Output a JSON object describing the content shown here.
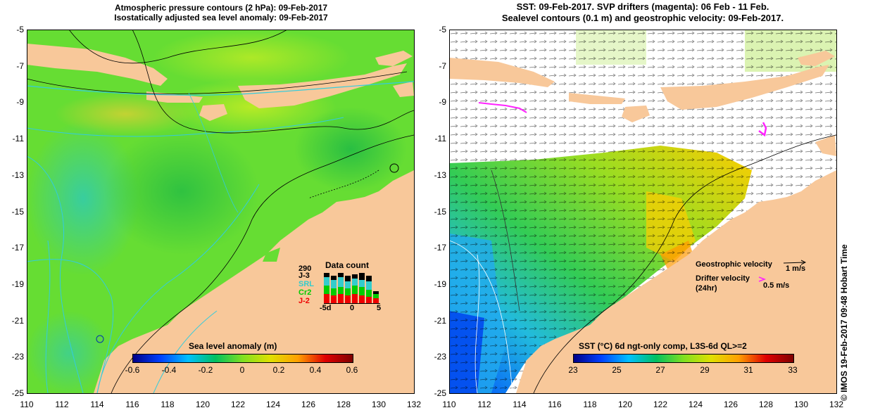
{
  "left_panel": {
    "title_line1": "Atmospheric pressure contours (2 hPa): 09-Feb-2017",
    "title_line2": "Isostatically adjusted sea level anomaly: 09-Feb-2017",
    "colorbar": {
      "title": "Sea level anomaly (m)",
      "ticks": [
        "-0.6",
        "-0.4",
        "-0.2",
        "0",
        "0.2",
        "0.4",
        "0.6"
      ],
      "colors": [
        "#000088",
        "#0040ff",
        "#00c0ff",
        "#00c060",
        "#80e020",
        "#e0e000",
        "#ffa000",
        "#e00000",
        "#800000"
      ]
    },
    "data_count": {
      "title": "Data count",
      "max_label": "290",
      "series": [
        {
          "name": "J-3",
          "color": "#000000"
        },
        {
          "name": "SRL",
          "color": "#33cccc"
        },
        {
          "name": "Cr2",
          "color": "#00cc00"
        },
        {
          "name": "J-2",
          "color": "#ee0000"
        }
      ],
      "x_ticks": [
        "-5d",
        "0",
        "5"
      ]
    }
  },
  "right_panel": {
    "title_line1": "SST: 09-Feb-2017. SVP drifters (magenta): 06 Feb - 11 Feb.",
    "title_line2": "Sealevel contours (0.1 m) and geostrophic velocity: 09-Feb-2017.",
    "legend": {
      "geo_label": "Geostrophic velocity",
      "geo_speed": "1 m/s",
      "drifter_label": "Drifter velocity",
      "drifter_period": "(24hr)",
      "drifter_speed": "0.5 m/s"
    },
    "colorbar": {
      "title": "SST (°C) 6d ngt-only comp, L3S-6d QL>=2",
      "ticks": [
        "23",
        "25",
        "27",
        "29",
        "31",
        "33"
      ],
      "colors": [
        "#000088",
        "#0040ff",
        "#00c0ff",
        "#00c060",
        "#80e020",
        "#e0e000",
        "#ffa000",
        "#e00000",
        "#800000"
      ]
    }
  },
  "axes": {
    "lat_ticks": [
      "-5",
      "-7",
      "-9",
      "-11",
      "-13",
      "-15",
      "-17",
      "-19",
      "-21",
      "-23",
      "-25"
    ],
    "lon_ticks": [
      "110",
      "112",
      "114",
      "116",
      "118",
      "120",
      "122",
      "124",
      "126",
      "128",
      "130",
      "132"
    ]
  },
  "side_text": "© IMOS 19-Feb-2017 09:48 Hobart Time",
  "colors": {
    "land": "#f8c89a",
    "ocean_left": "#66dd33",
    "ocean_right": "#ffffff"
  }
}
